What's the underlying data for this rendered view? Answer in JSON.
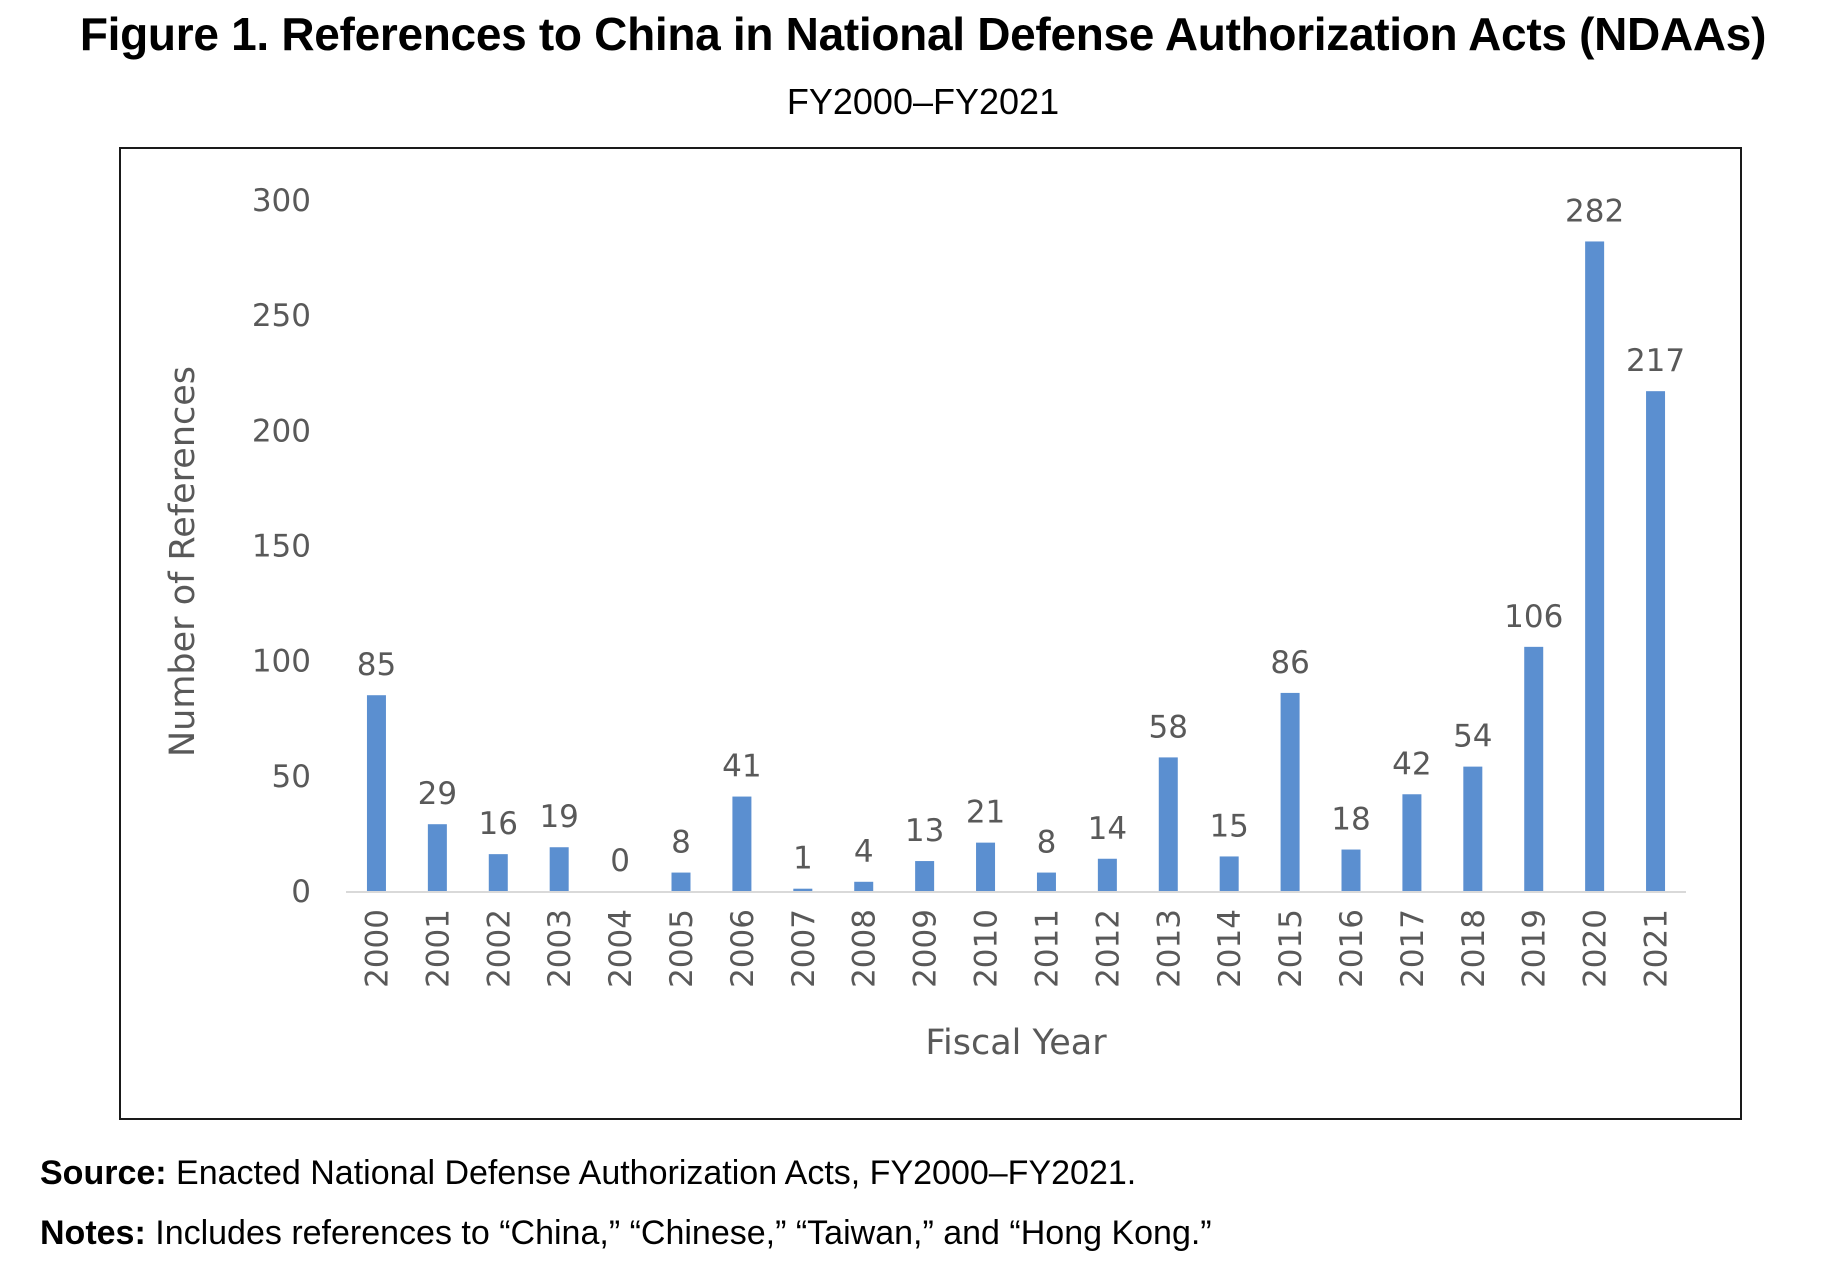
{
  "figure": {
    "title": "Figure 1. References to China in National Defense Authorization Acts (NDAAs)",
    "subtitle": "FY2000–FY2021"
  },
  "source": {
    "lead": "Source:",
    "text": " Enacted National Defense Authorization Acts, FY2000–FY2021."
  },
  "notes": {
    "lead": "Notes:",
    "text": " Includes references to “China,” “Chinese,” “Taiwan,” and “Hong Kong.”"
  },
  "chart_data": {
    "type": "bar",
    "title": "",
    "xlabel": "Fiscal Year",
    "ylabel": "Number of References",
    "ylim": [
      0,
      300
    ],
    "yticks": [
      0,
      50,
      100,
      150,
      200,
      250,
      300
    ],
    "grid": false,
    "legend": "none",
    "bar_color": "#5b8fd0",
    "categories": [
      "2000",
      "2001",
      "2002",
      "2003",
      "2004",
      "2005",
      "2006",
      "2007",
      "2008",
      "2009",
      "2010",
      "2011",
      "2012",
      "2013",
      "2014",
      "2015",
      "2016",
      "2017",
      "2018",
      "2019",
      "2020",
      "2021"
    ],
    "values": [
      85,
      29,
      16,
      19,
      0,
      8,
      41,
      1,
      4,
      13,
      21,
      8,
      14,
      58,
      15,
      86,
      18,
      42,
      54,
      106,
      282,
      217
    ]
  }
}
